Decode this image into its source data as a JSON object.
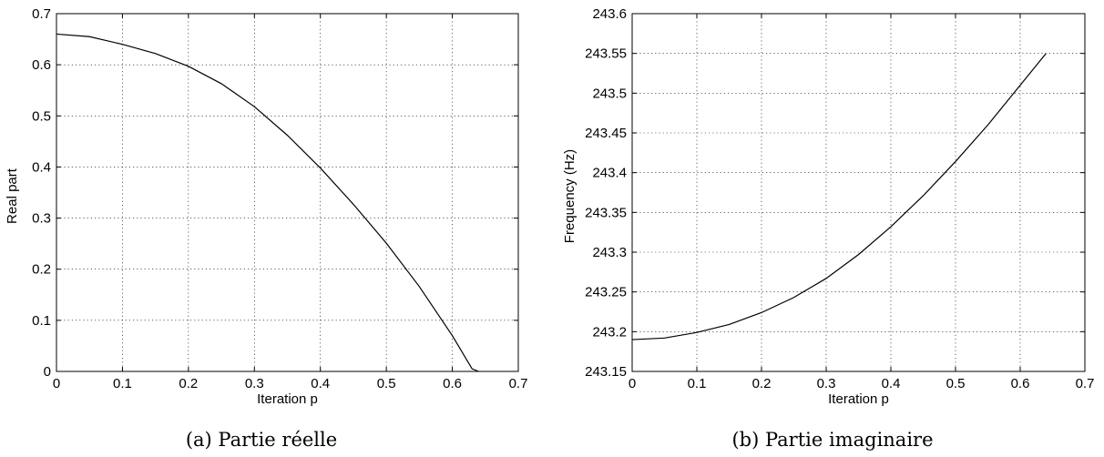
{
  "chart_data": [
    {
      "type": "line",
      "caption": "(a)  Partie réelle",
      "xlabel": "Iteration p",
      "ylabel": "Real part",
      "xlim": [
        0,
        0.7
      ],
      "ylim": [
        0,
        0.7
      ],
      "xticks": [
        "0",
        "0.1",
        "0.2",
        "0.3",
        "0.4",
        "0.5",
        "0.6",
        "0.7"
      ],
      "yticks": [
        "0",
        "0.1",
        "0.2",
        "0.3",
        "0.4",
        "0.5",
        "0.6",
        "0.7"
      ],
      "grid": true,
      "series": [
        {
          "x": [
            0,
            0.05,
            0.1,
            0.15,
            0.2,
            0.25,
            0.3,
            0.35,
            0.4,
            0.45,
            0.5,
            0.55,
            0.6,
            0.63,
            0.64
          ],
          "y": [
            0.66,
            0.655,
            0.64,
            0.622,
            0.597,
            0.563,
            0.518,
            0.462,
            0.398,
            0.327,
            0.251,
            0.166,
            0.07,
            0.005,
            0.0
          ]
        }
      ]
    },
    {
      "type": "line",
      "caption": "(b)  Partie imaginaire",
      "xlabel": "Iteration p",
      "ylabel": "Frequency (Hz)",
      "xlim": [
        0,
        0.7
      ],
      "ylim": [
        243.15,
        243.6
      ],
      "xticks": [
        "0",
        "0.1",
        "0.2",
        "0.3",
        "0.4",
        "0.5",
        "0.6",
        "0.7"
      ],
      "yticks": [
        "243.15",
        "243.2",
        "243.25",
        "243.3",
        "243.35",
        "243.4",
        "243.45",
        "243.5",
        "243.55",
        "243.6"
      ],
      "grid": true,
      "series": [
        {
          "x": [
            0,
            0.05,
            0.1,
            0.15,
            0.2,
            0.25,
            0.3,
            0.35,
            0.4,
            0.45,
            0.5,
            0.55,
            0.6,
            0.64
          ],
          "y": [
            243.19,
            243.192,
            243.199,
            243.209,
            243.224,
            243.243,
            243.267,
            243.297,
            243.332,
            243.371,
            243.414,
            243.46,
            243.51,
            243.55
          ]
        }
      ]
    }
  ]
}
